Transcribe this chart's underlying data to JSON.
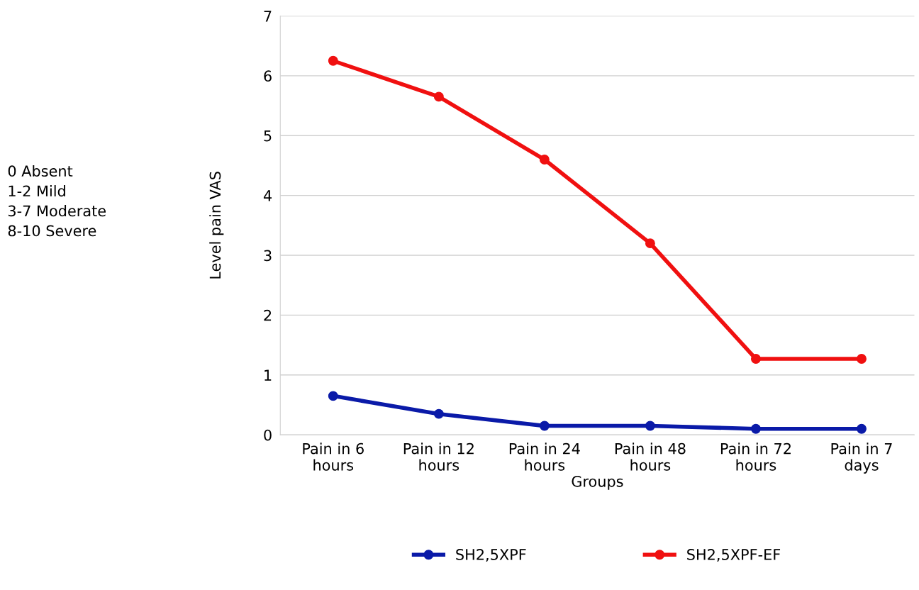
{
  "chart_data": {
    "type": "line",
    "ylabel": "Level pain VAS",
    "xlabel": "Groups",
    "categories": [
      "Pain in 6\nhours",
      "Pain in 12\nhours",
      "Pain in 24\nhours",
      "Pain in 48\nhours",
      "Pain in 72\nhours",
      "Pain in 7\ndays"
    ],
    "series": [
      {
        "name": "SH2,5XPF",
        "color": "#0a1aa8",
        "values": [
          0.65,
          0.35,
          0.15,
          0.15,
          0.1,
          0.1
        ]
      },
      {
        "name": "SH2,5XPF-EF",
        "color": "#f01010",
        "values": [
          6.25,
          5.65,
          4.6,
          3.2,
          1.27,
          1.27
        ]
      }
    ],
    "ylim": [
      0,
      7
    ],
    "yticks": [
      0,
      1,
      2,
      3,
      4,
      5,
      6,
      7
    ],
    "grid": "y",
    "legend": "bottom",
    "marker": "circle",
    "line_style": "solid",
    "annotations": [
      "0 Absent\n1-2 Mild\n3-7 Moderate\n8-10 Severe"
    ]
  }
}
